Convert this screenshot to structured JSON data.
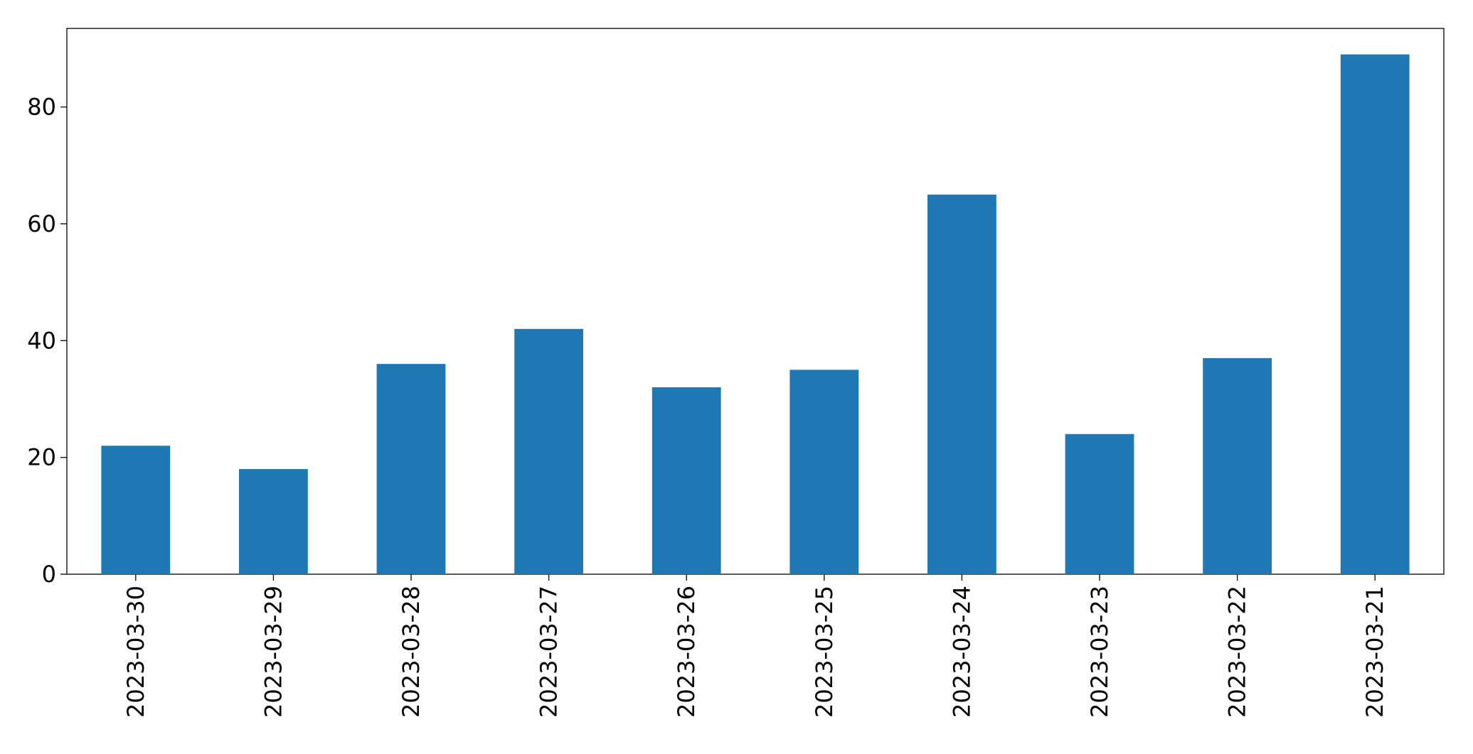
{
  "chart_data": {
    "type": "bar",
    "categories": [
      "2023-03-30",
      "2023-03-29",
      "2023-03-28",
      "2023-03-27",
      "2023-03-26",
      "2023-03-25",
      "2023-03-24",
      "2023-03-23",
      "2023-03-22",
      "2023-03-21"
    ],
    "values": [
      22,
      18,
      36,
      42,
      32,
      35,
      65,
      24,
      37,
      89
    ],
    "color": "#1f77b4",
    "ylim": [
      0,
      93.45
    ],
    "yticks": [
      0,
      20,
      40,
      60,
      80
    ],
    "grid": false
  }
}
